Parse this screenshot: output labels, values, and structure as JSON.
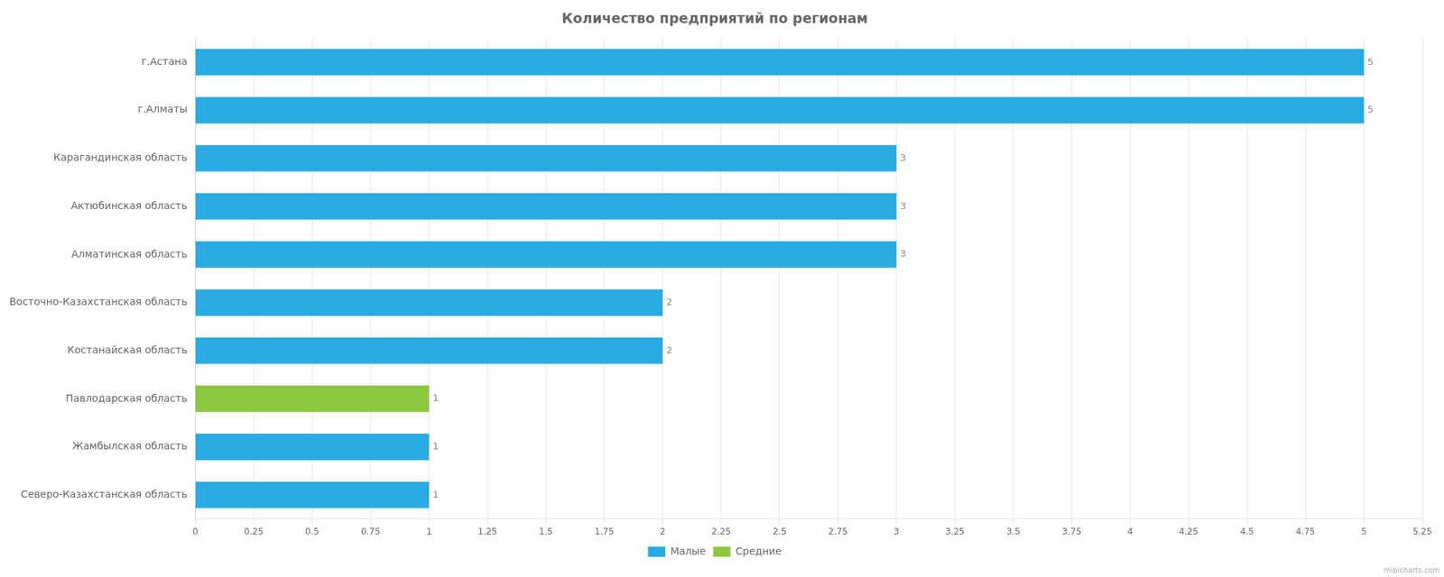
{
  "chart_data": {
    "type": "bar",
    "orientation": "horizontal",
    "title": "Количество предприятий по регионам",
    "categories": [
      "г.Астана",
      "г.Алматы",
      "Карагандинская область",
      "Актюбинская область",
      "Алматинская область",
      "Восточно-Казахстанская область",
      "Костанайская область",
      "Павлодарская область",
      "Жамбылская область",
      "Северо-Казахстанская область"
    ],
    "series": [
      {
        "name": "Малые",
        "color": "#29abe2",
        "values": [
          5,
          5,
          3,
          3,
          3,
          2,
          2,
          null,
          1,
          1
        ]
      },
      {
        "name": "Средние",
        "color": "#8dc63f",
        "values": [
          null,
          null,
          null,
          null,
          null,
          null,
          null,
          1,
          null,
          null
        ]
      }
    ],
    "stacked": true,
    "xlim": [
      0,
      5.25
    ],
    "xticks": [
      0,
      0.25,
      0.5,
      0.75,
      1,
      1.25,
      1.5,
      1.75,
      2,
      2.25,
      2.5,
      2.75,
      3,
      3.25,
      3.5,
      3.75,
      4,
      4.25,
      4.5,
      4.75,
      5,
      5.25
    ],
    "grid": true,
    "legend": "bottom",
    "data_labels": true,
    "annotations": [
      "mipicharts.com"
    ]
  }
}
